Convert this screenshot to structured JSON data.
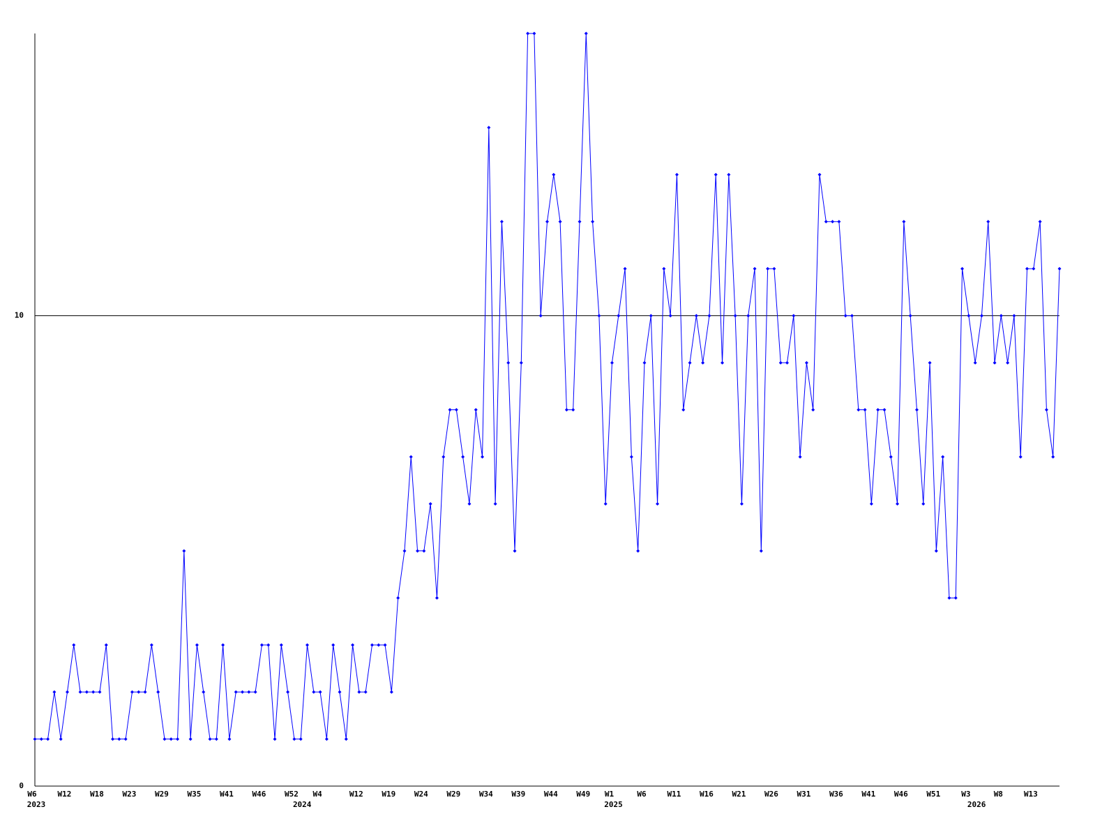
{
  "chart_data": {
    "type": "line",
    "color": "#0000ff",
    "ylim": [
      0,
      16
    ],
    "yticks": [
      0,
      10
    ],
    "grid": true,
    "categories": [
      "W6",
      null,
      null,
      null,
      null,
      "W12",
      null,
      null,
      null,
      null,
      "W18",
      null,
      null,
      null,
      null,
      "W23",
      null,
      null,
      null,
      null,
      "W29",
      null,
      null,
      null,
      null,
      "W35",
      null,
      null,
      null,
      null,
      "W41",
      null,
      null,
      null,
      null,
      "W46",
      null,
      null,
      null,
      null,
      "W52",
      null,
      null,
      null,
      "W4",
      null,
      null,
      null,
      null,
      null,
      "W12",
      null,
      null,
      null,
      null,
      "W19",
      null,
      null,
      null,
      null,
      "W24",
      null,
      null,
      null,
      null,
      "W29",
      null,
      null,
      null,
      null,
      "W34",
      null,
      null,
      null,
      null,
      "W39",
      null,
      null,
      null,
      null,
      "W44",
      null,
      null,
      null,
      null,
      "W49",
      null,
      null,
      null,
      "W1",
      null,
      null,
      null,
      null,
      "W6",
      null,
      null,
      null,
      null,
      "W11",
      null,
      null,
      null,
      null,
      "W16",
      null,
      null,
      null,
      null,
      "W21",
      null,
      null,
      null,
      null,
      "W26",
      null,
      null,
      null,
      null,
      "W31",
      null,
      null,
      null,
      null,
      "W36",
      null,
      null,
      null,
      null,
      "W41",
      null,
      null,
      null,
      null,
      "W46",
      null,
      null,
      null,
      null,
      "W51",
      null,
      null,
      null,
      null,
      "W3",
      null,
      null,
      null,
      null,
      "W8",
      null,
      null,
      null,
      null,
      "W13",
      null,
      null,
      null,
      null
    ],
    "years": [
      "2023",
      null,
      null,
      null,
      null,
      null,
      null,
      null,
      null,
      null,
      null,
      null,
      null,
      null,
      null,
      null,
      null,
      null,
      null,
      null,
      null,
      null,
      null,
      null,
      null,
      null,
      null,
      null,
      null,
      null,
      null,
      null,
      null,
      null,
      null,
      null,
      null,
      null,
      null,
      null,
      null,
      "2024",
      null,
      null,
      null,
      null,
      null,
      null,
      null,
      null,
      null,
      null,
      null,
      null,
      null,
      null,
      null,
      null,
      null,
      null,
      null,
      null,
      null,
      null,
      null,
      null,
      null,
      null,
      null,
      null,
      null,
      null,
      null,
      null,
      null,
      null,
      null,
      null,
      null,
      null,
      null,
      null,
      null,
      null,
      null,
      null,
      null,
      null,
      null,
      "2025",
      null,
      null,
      null,
      null,
      null,
      null,
      null,
      null,
      null,
      null,
      null,
      null,
      null,
      null,
      null,
      null,
      null,
      null,
      null,
      null,
      null,
      null,
      null,
      null,
      null,
      null,
      null,
      null,
      null,
      null,
      null,
      null,
      null,
      null,
      null,
      null,
      null,
      null,
      null,
      null,
      null,
      null,
      null,
      null,
      null,
      null,
      null,
      null,
      null,
      null,
      null,
      null,
      null,
      null,
      null,
      "2026",
      null,
      null,
      null,
      null,
      null,
      null,
      null,
      null,
      null,
      null,
      null,
      null,
      null,
      null,
      null
    ],
    "values": [
      1,
      1,
      1,
      2,
      1,
      2,
      3,
      2,
      2,
      2,
      2,
      3,
      1,
      1,
      1,
      2,
      2,
      2,
      3,
      2,
      1,
      1,
      1,
      5,
      1,
      3,
      2,
      1,
      1,
      3,
      1,
      2,
      2,
      2,
      2,
      3,
      3,
      1,
      3,
      2,
      1,
      1,
      3,
      2,
      2,
      1,
      3,
      2,
      1,
      3,
      2,
      2,
      3,
      3,
      3,
      2,
      4,
      5,
      7,
      5,
      5,
      6,
      4,
      7,
      8,
      8,
      7,
      6,
      8,
      7,
      14,
      6,
      12,
      9,
      5,
      9,
      16,
      16,
      10,
      12,
      13,
      12,
      8,
      8,
      12,
      16,
      12,
      10,
      6,
      9,
      10,
      11,
      7,
      5,
      9,
      10,
      6,
      11,
      10,
      13,
      8,
      9,
      10,
      9,
      10,
      13,
      9,
      13,
      10,
      6,
      10,
      11,
      5,
      11,
      11,
      9,
      9,
      10,
      7,
      9,
      8,
      13,
      12,
      12,
      12,
      10,
      10,
      8,
      8,
      6,
      8,
      8,
      7,
      6,
      12,
      10,
      8,
      6,
      9,
      5,
      7,
      4,
      4,
      11,
      10,
      9,
      10,
      12,
      9,
      10,
      9,
      10,
      7,
      11,
      11,
      12,
      8,
      7,
      11
    ]
  }
}
